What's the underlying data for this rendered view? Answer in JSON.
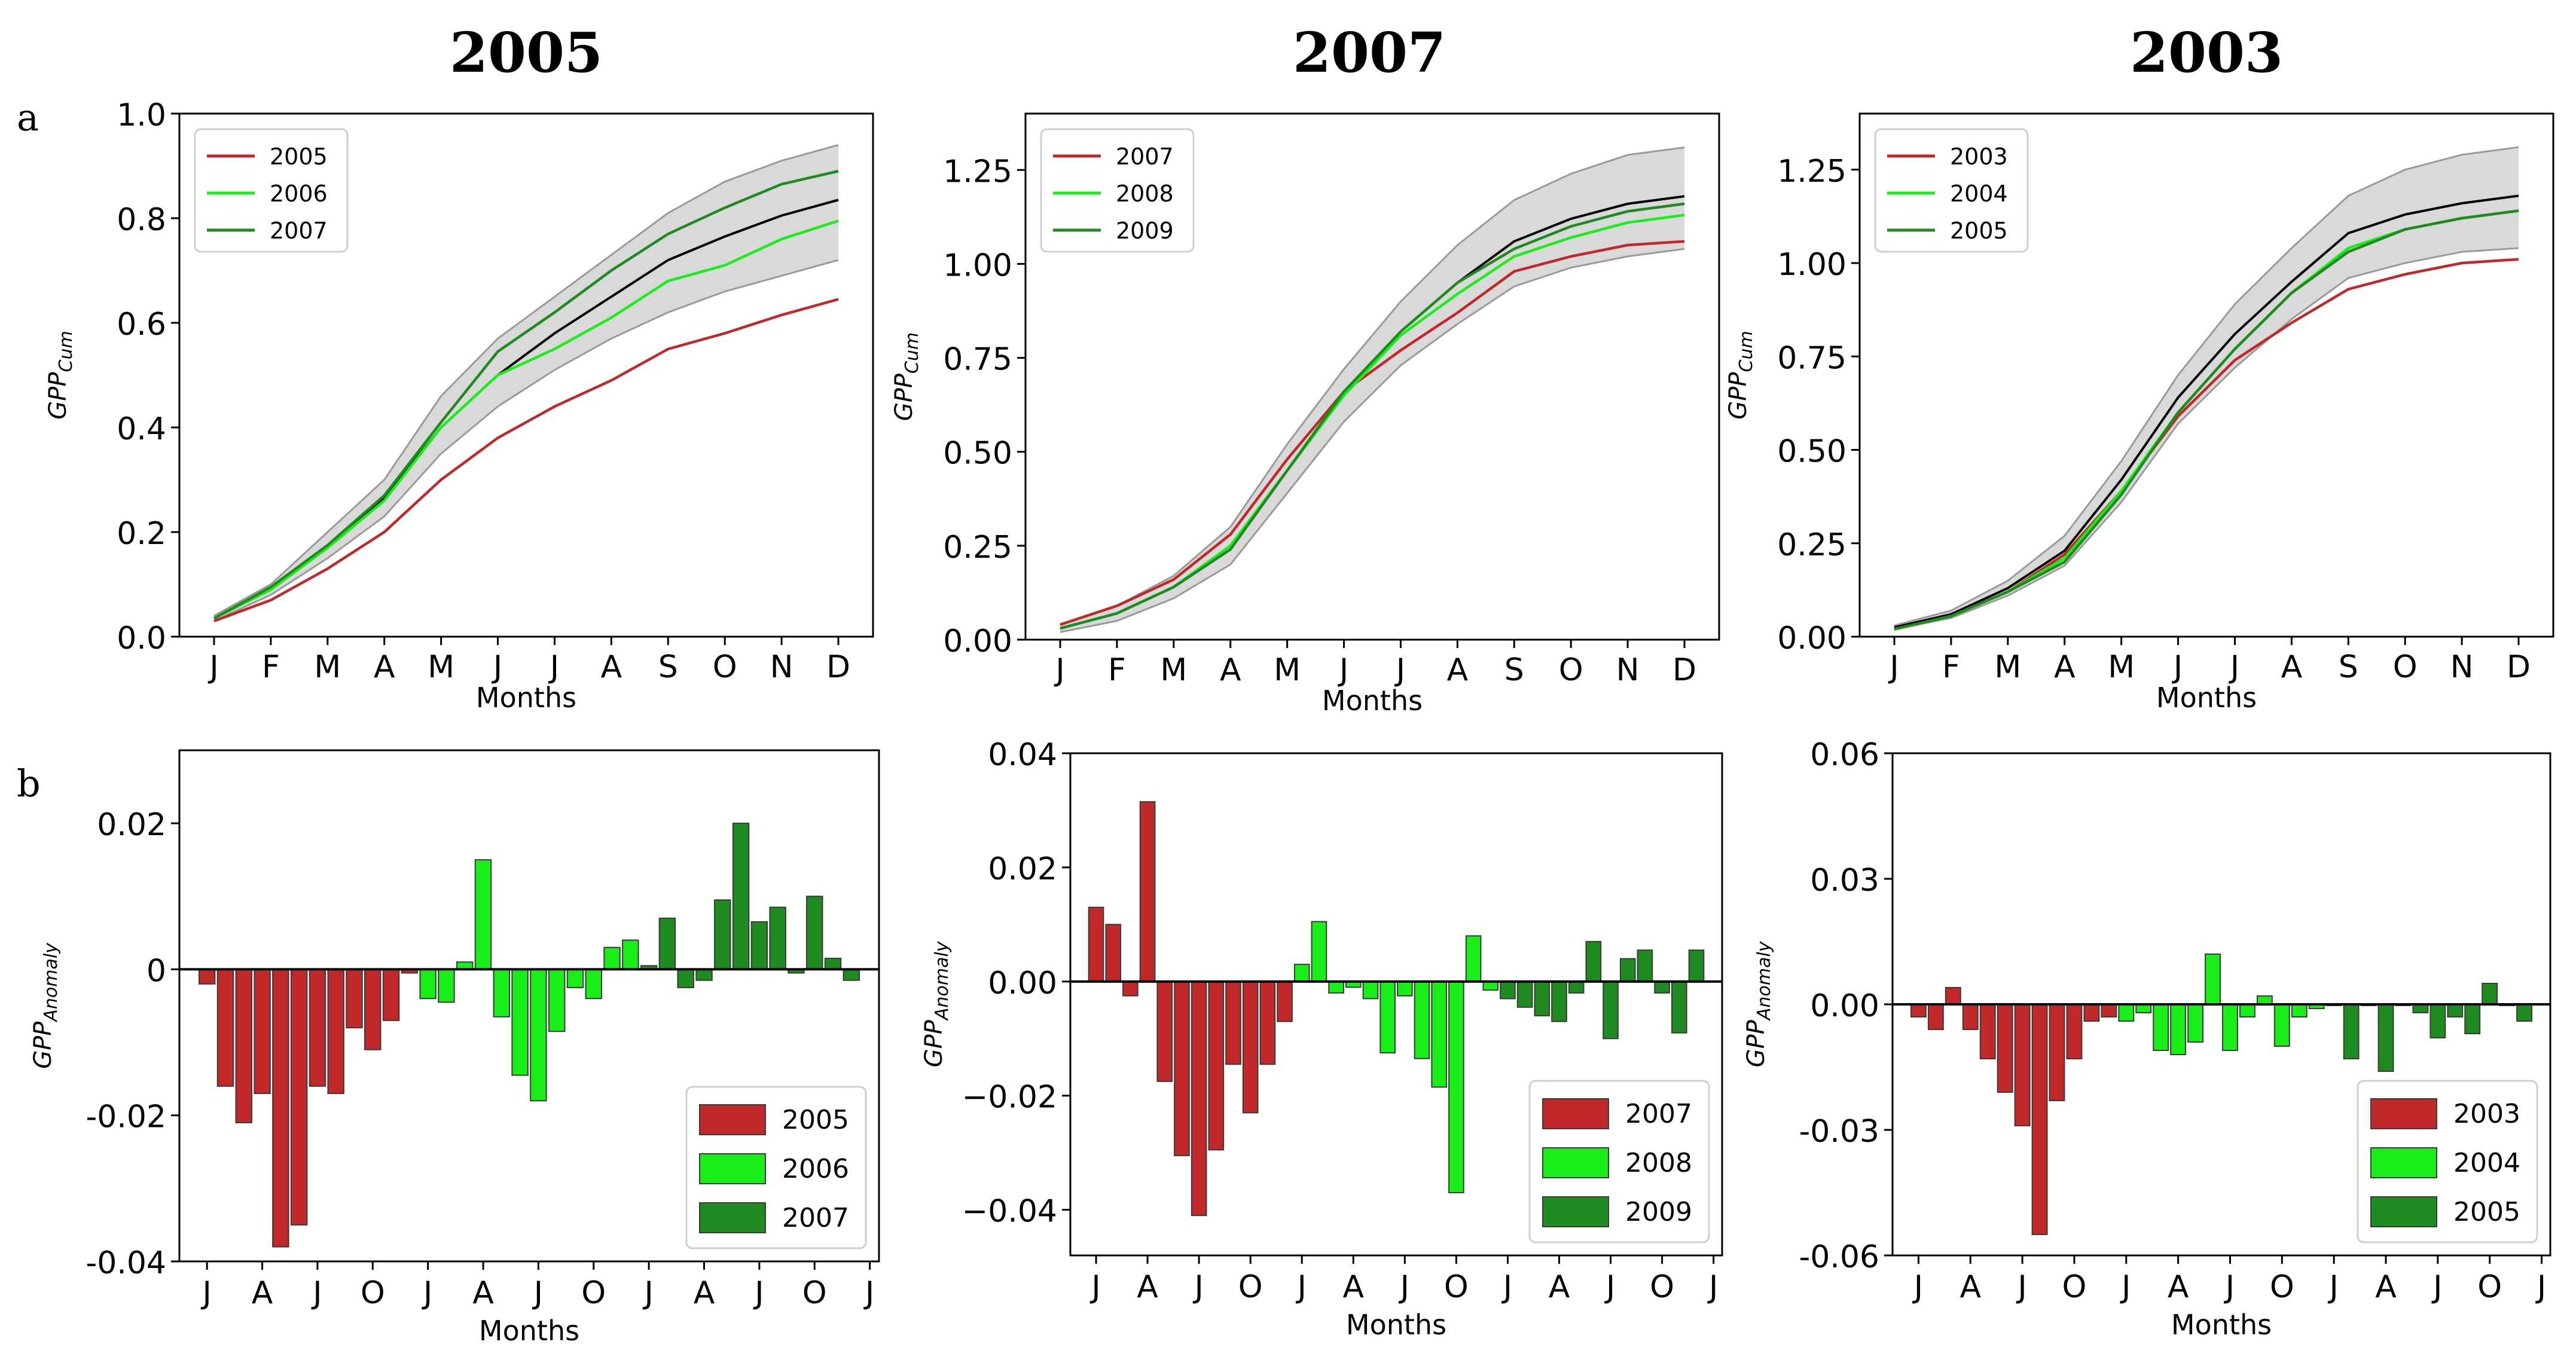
{
  "figure": {
    "row_labels": [
      "a",
      "b"
    ],
    "colors": {
      "red": "#c0282a",
      "lime": "#19ee19",
      "dark_green": "#1f8a1f",
      "black": "#000000",
      "band": "#d9d9d9",
      "band_edge": "#9a9a9a"
    }
  },
  "chart_data": [
    {
      "type": "line",
      "panel": "a",
      "title": "2005",
      "xlabel": "Months",
      "ylabel": "GPP",
      "ylabel_sub": "Cum",
      "categories": [
        "J",
        "F",
        "M",
        "A",
        "M",
        "J",
        "J",
        "A",
        "S",
        "O",
        "N",
        "D"
      ],
      "ylim": [
        0.0,
        1.0
      ],
      "yticks": [
        0.0,
        0.2,
        0.4,
        0.6,
        0.8,
        1.0
      ],
      "ytick_labels": [
        "0.0",
        "0.2",
        "0.4",
        "0.6",
        "0.8",
        "1.0"
      ],
      "band_upper": [
        0.04,
        0.1,
        0.2,
        0.3,
        0.46,
        0.57,
        0.65,
        0.73,
        0.81,
        0.87,
        0.91,
        0.94
      ],
      "band_lower": [
        0.03,
        0.08,
        0.15,
        0.23,
        0.35,
        0.44,
        0.51,
        0.57,
        0.62,
        0.66,
        0.69,
        0.72
      ],
      "mean": [
        0.035,
        0.09,
        0.17,
        0.265,
        0.4,
        0.5,
        0.58,
        0.65,
        0.72,
        0.765,
        0.805,
        0.835
      ],
      "series": [
        {
          "name": "2005",
          "color": "red",
          "values": [
            0.03,
            0.07,
            0.13,
            0.2,
            0.3,
            0.38,
            0.44,
            0.49,
            0.55,
            0.58,
            0.615,
            0.645
          ]
        },
        {
          "name": "2006",
          "color": "lime",
          "values": [
            0.035,
            0.09,
            0.17,
            0.26,
            0.4,
            0.5,
            0.55,
            0.61,
            0.68,
            0.71,
            0.76,
            0.795
          ]
        },
        {
          "name": "2007",
          "color": "dark_green",
          "values": [
            0.035,
            0.095,
            0.175,
            0.27,
            0.41,
            0.545,
            0.62,
            0.7,
            0.77,
            0.82,
            0.865,
            0.89
          ]
        }
      ],
      "legend": "top-left"
    },
    {
      "type": "line",
      "panel": "a",
      "title": "2007",
      "xlabel": "Months",
      "ylabel": "GPP",
      "ylabel_sub": "Cum",
      "categories": [
        "J",
        "F",
        "M",
        "A",
        "M",
        "J",
        "J",
        "A",
        "S",
        "O",
        "N",
        "D"
      ],
      "ylim": [
        0.0,
        1.4
      ],
      "yticks": [
        0.0,
        0.25,
        0.5,
        0.75,
        1.0,
        1.25
      ],
      "ytick_labels": [
        "0.00",
        "0.25",
        "0.50",
        "0.75",
        "1.00",
        "1.25"
      ],
      "band_upper": [
        0.04,
        0.09,
        0.17,
        0.3,
        0.52,
        0.72,
        0.9,
        1.05,
        1.17,
        1.24,
        1.29,
        1.31
      ],
      "band_lower": [
        0.02,
        0.05,
        0.11,
        0.2,
        0.39,
        0.58,
        0.73,
        0.84,
        0.94,
        0.99,
        1.02,
        1.04
      ],
      "mean": [
        0.03,
        0.07,
        0.14,
        0.25,
        0.45,
        0.65,
        0.82,
        0.95,
        1.06,
        1.12,
        1.16,
        1.18
      ],
      "series": [
        {
          "name": "2007",
          "color": "red",
          "values": [
            0.04,
            0.09,
            0.16,
            0.28,
            0.48,
            0.66,
            0.77,
            0.87,
            0.98,
            1.02,
            1.05,
            1.06
          ]
        },
        {
          "name": "2008",
          "color": "lime",
          "values": [
            0.03,
            0.07,
            0.14,
            0.25,
            0.45,
            0.65,
            0.81,
            0.92,
            1.02,
            1.07,
            1.11,
            1.13
          ]
        },
        {
          "name": "2009",
          "color": "dark_green",
          "values": [
            0.03,
            0.07,
            0.14,
            0.24,
            0.45,
            0.66,
            0.82,
            0.95,
            1.04,
            1.1,
            1.14,
            1.16
          ]
        }
      ],
      "legend": "top-left"
    },
    {
      "type": "line",
      "panel": "a",
      "title": "2003",
      "xlabel": "Months",
      "ylabel": "GPP",
      "ylabel_sub": "Cum",
      "categories": [
        "J",
        "F",
        "M",
        "A",
        "M",
        "J",
        "J",
        "A",
        "S",
        "O",
        "N",
        "D"
      ],
      "ylim": [
        0.0,
        1.4
      ],
      "yticks": [
        0.0,
        0.25,
        0.5,
        0.75,
        1.0,
        1.25
      ],
      "ytick_labels": [
        "0.00",
        "0.25",
        "0.50",
        "0.75",
        "1.00",
        "1.25"
      ],
      "band_upper": [
        0.03,
        0.07,
        0.15,
        0.27,
        0.47,
        0.7,
        0.89,
        1.04,
        1.18,
        1.25,
        1.29,
        1.31
      ],
      "band_lower": [
        0.02,
        0.05,
        0.11,
        0.19,
        0.36,
        0.57,
        0.72,
        0.85,
        0.96,
        1.0,
        1.03,
        1.04
      ],
      "mean": [
        0.025,
        0.06,
        0.13,
        0.23,
        0.42,
        0.64,
        0.81,
        0.95,
        1.08,
        1.13,
        1.16,
        1.18
      ],
      "series": [
        {
          "name": "2003",
          "color": "red",
          "values": [
            0.02,
            0.055,
            0.12,
            0.22,
            0.39,
            0.59,
            0.74,
            0.84,
            0.93,
            0.97,
            1.0,
            1.01
          ]
        },
        {
          "name": "2004",
          "color": "lime",
          "values": [
            0.02,
            0.055,
            0.12,
            0.21,
            0.39,
            0.6,
            0.77,
            0.92,
            1.04,
            1.09,
            1.12,
            1.14
          ]
        },
        {
          "name": "2005",
          "color": "dark_green",
          "values": [
            0.02,
            0.055,
            0.12,
            0.2,
            0.38,
            0.6,
            0.77,
            0.92,
            1.03,
            1.09,
            1.12,
            1.14
          ]
        }
      ],
      "legend": "top-left"
    },
    {
      "type": "bar",
      "panel": "b",
      "xlabel": "Months",
      "ylabel": "GPP",
      "ylabel_sub": "Anomaly",
      "x_ticks": [
        "J",
        "A",
        "J",
        "O",
        "J",
        "A",
        "J",
        "O",
        "J",
        "A",
        "J",
        "O",
        "J"
      ],
      "ylim": [
        -0.04,
        0.03
      ],
      "yticks": [
        -0.04,
        -0.02,
        0.0,
        0.02
      ],
      "ytick_labels": [
        "-0.04",
        "-0.02",
        "0",
        "0.02"
      ],
      "series": [
        {
          "name": "2005",
          "color": "red",
          "values": [
            -0.002,
            -0.016,
            -0.021,
            -0.017,
            -0.038,
            -0.035,
            -0.016,
            -0.017,
            -0.008,
            -0.011,
            -0.007,
            -0.0005
          ]
        },
        {
          "name": "2006",
          "color": "lime",
          "values": [
            -0.004,
            -0.0045,
            0.001,
            0.015,
            -0.0065,
            -0.0145,
            -0.018,
            -0.0085,
            -0.0025,
            -0.004,
            0.003,
            0.004
          ]
        },
        {
          "name": "2007",
          "color": "dark_green",
          "values": [
            0.0005,
            0.007,
            -0.0025,
            -0.0015,
            0.0095,
            0.02,
            0.0065,
            0.0085,
            -0.0005,
            0.01,
            0.0015,
            -0.0015
          ]
        }
      ],
      "legend": "bottom-right"
    },
    {
      "type": "bar",
      "panel": "b",
      "xlabel": "Months",
      "ylabel": "GPP",
      "ylabel_sub": "Anomaly",
      "x_ticks": [
        "J",
        "A",
        "J",
        "O",
        "J",
        "A",
        "J",
        "O",
        "J",
        "A",
        "J",
        "O",
        "J"
      ],
      "ylim": [
        -0.048,
        0.04
      ],
      "yticks": [
        -0.04,
        -0.02,
        0.0,
        0.02,
        0.04
      ],
      "ytick_labels": [
        "−0.04",
        "−0.02",
        "0.00",
        "0.02",
        "0.04"
      ],
      "series": [
        {
          "name": "2007",
          "color": "red",
          "values": [
            0.013,
            0.01,
            -0.0025,
            0.0315,
            -0.0175,
            -0.0305,
            -0.041,
            -0.0295,
            -0.0145,
            -0.023,
            -0.0145,
            -0.007
          ]
        },
        {
          "name": "2008",
          "color": "lime",
          "values": [
            0.003,
            0.0105,
            -0.002,
            -0.001,
            -0.003,
            -0.0125,
            -0.0025,
            -0.0135,
            -0.0185,
            -0.037,
            0.008,
            -0.0015
          ]
        },
        {
          "name": "2009",
          "color": "dark_green",
          "values": [
            -0.003,
            -0.0045,
            -0.006,
            -0.007,
            -0.002,
            0.007,
            -0.01,
            0.004,
            0.0055,
            -0.002,
            -0.009,
            0.0055
          ]
        }
      ],
      "legend": "bottom-right"
    },
    {
      "type": "bar",
      "panel": "b",
      "xlabel": "Months",
      "ylabel": "GPP",
      "ylabel_sub": "Anomaly",
      "x_ticks": [
        "J",
        "A",
        "J",
        "O",
        "J",
        "A",
        "J",
        "O",
        "J",
        "A",
        "J",
        "O",
        "J"
      ],
      "ylim": [
        -0.06,
        0.06
      ],
      "yticks": [
        -0.06,
        -0.03,
        0.0,
        0.03,
        0.06
      ],
      "ytick_labels": [
        "-0.06",
        "-0.03",
        "0.00",
        "0.03",
        "0.06"
      ],
      "series": [
        {
          "name": "2003",
          "color": "red",
          "values": [
            -0.003,
            -0.006,
            0.004,
            -0.006,
            -0.013,
            -0.021,
            -0.029,
            -0.055,
            -0.023,
            -0.013,
            -0.004,
            -0.003
          ]
        },
        {
          "name": "2004",
          "color": "lime",
          "values": [
            -0.004,
            -0.002,
            -0.011,
            -0.012,
            -0.009,
            0.012,
            -0.011,
            -0.003,
            0.002,
            -0.01,
            -0.003,
            -0.001
          ]
        },
        {
          "name": "2005",
          "color": "dark_green",
          "values": [
            0.0,
            -0.013,
            0.0,
            -0.016,
            0.0,
            -0.002,
            -0.008,
            -0.003,
            -0.007,
            0.005,
            0.0,
            -0.004
          ]
        }
      ],
      "legend": "bottom-right"
    }
  ]
}
